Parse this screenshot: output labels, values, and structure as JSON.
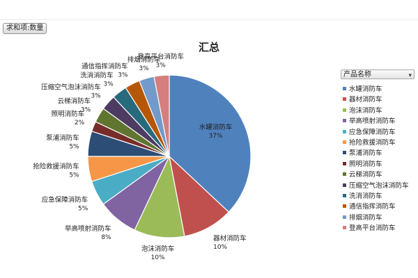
{
  "pivot_field_button": "求和项:数量",
  "legend_header": "产品名称",
  "icons": {
    "legend_filter": "filter-dropdown-icon"
  },
  "chart_data": {
    "type": "pie",
    "title": "汇总",
    "legend_position": "right",
    "slices": [
      {
        "label": "水罐消防车",
        "value": 37,
        "percent_label": "37%",
        "color": "#4f81bd"
      },
      {
        "label": "器材消防车",
        "value": 10,
        "percent_label": "10%",
        "color": "#c0504d"
      },
      {
        "label": "泡沫消防车",
        "value": 10,
        "percent_label": "10%",
        "color": "#9bbb59"
      },
      {
        "label": "举高喷射消防车",
        "value": 8,
        "percent_label": "8%",
        "color": "#8064a2"
      },
      {
        "label": "应急保障消防车",
        "value": 5,
        "percent_label": "5%",
        "color": "#4bacc6"
      },
      {
        "label": "抢险救援消防车",
        "value": 5,
        "percent_label": "5%",
        "color": "#f79646"
      },
      {
        "label": "泵浦消防车",
        "value": 5,
        "percent_label": "5%",
        "color": "#2c4d75"
      },
      {
        "label": "照明消防车",
        "value": 2,
        "percent_label": "2%",
        "color": "#772c2a"
      },
      {
        "label": "云梯消防车",
        "value": 3,
        "percent_label": "3%",
        "color": "#5f7530"
      },
      {
        "label": "压缩空气泡沫消防车",
        "value": 3,
        "percent_label": "3%",
        "color": "#4d3b62"
      },
      {
        "label": "洗消消防车",
        "value": 3,
        "percent_label": "3%",
        "color": "#276a7c"
      },
      {
        "label": "通信指挥消防车",
        "value": 3,
        "percent_label": "3%",
        "color": "#b65708"
      },
      {
        "label": "排烟消防车",
        "value": 3,
        "percent_label": "3%",
        "color": "#729aca"
      },
      {
        "label": "登高平台消防车",
        "value": 3,
        "percent_label": "3%",
        "color": "#d47f7d"
      }
    ],
    "legend_entries": [
      "水罐消防车",
      "器材消防车",
      "泡沫消防车",
      "举高喷射消防车",
      "应急保障消防车",
      "抢险救援消防车",
      "泵浦消防车",
      "照明消防车",
      "云梯消防车",
      "压缩空气泡沫消防车",
      "洗消消防车",
      "通信指挥消防车",
      "排烟消防车",
      "登高平台消防车"
    ]
  }
}
